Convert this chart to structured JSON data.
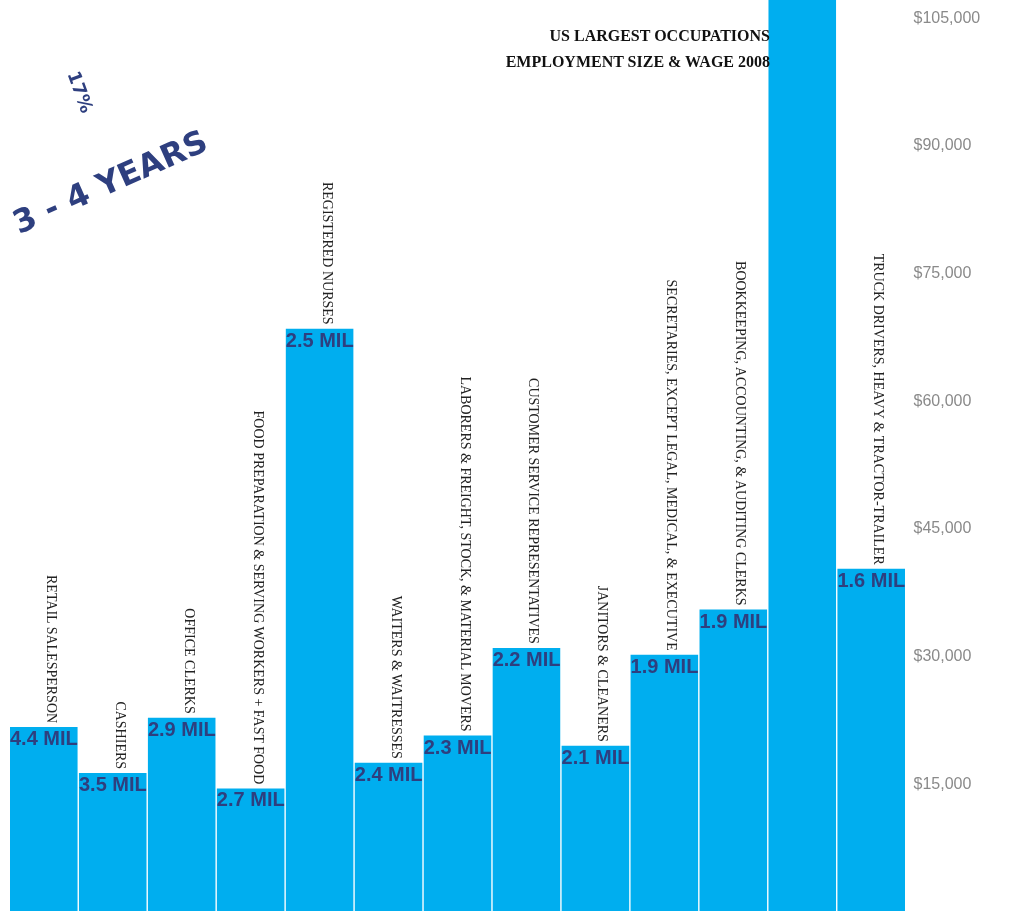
{
  "chart_data": {
    "type": "bar",
    "title": "US LARGEST OCCUPATIONS",
    "subtitle": "EMPLOYMENT SIZE  & WAGE 2008",
    "categories": [
      "RETAIL SALESPERSON",
      "CASHIERS",
      "OFFICE CLERKS",
      "FOOD PREPARATION & SERVING WORKERS + FAST FOOD",
      "REGISTERED NURSES",
      "WAITERS & WAITRESSES",
      "LABORERS & FREIGHT, STOCK, & MATERIAL MOVERS",
      "CUSTOMER SERVICE REPRESENTATIVES",
      "JANITORS & CLEANERS",
      "SECRETARIES, EXCEPT LEGAL, MEDICAL, & EXECUTIVE",
      "BOOKKEEPING, ACCOUNTING, & AUDITING CLERKS",
      null,
      "TRUCK DRIVERS, HEAVY & TRACTOR-TRAILER"
    ],
    "values": [
      21600,
      16200,
      22700,
      14400,
      68400,
      17400,
      20600,
      30900,
      19400,
      30100,
      35400,
      107000,
      40200
    ],
    "color": "#00aeef",
    "ylim": [
      0,
      107000
    ],
    "yticks": [
      {
        "value": 15000,
        "label": "$15,000"
      },
      {
        "value": 30000,
        "label": "$30,000"
      },
      {
        "value": 45000,
        "label": "$45,000"
      },
      {
        "value": 60000,
        "label": "$60,000"
      },
      {
        "value": 75000,
        "label": "$75,000"
      },
      {
        "value": 90000,
        "label": "$90,000"
      },
      {
        "value": 105000,
        "label": "$105,000"
      }
    ],
    "annotations": [
      "17%",
      "3 - 4 YEARS",
      {
        "text": "4.4 MIL",
        "x": "RETAIL SALESPERSON",
        "y": 21600
      },
      {
        "text": "3.5 MIL",
        "x": "CASHIERS",
        "y": 16200
      },
      {
        "text": "2.9 MIL",
        "x": "OFFICE CLERKS",
        "y": 22700
      },
      {
        "text": "2.7 MIL",
        "x": "FOOD PREPARATION & SERVING WORKERS + FAST FOOD",
        "y": 14400
      },
      {
        "text": "2.5 MIL",
        "x": "REGISTERED NURSES",
        "y": 68400
      },
      {
        "text": "2.4 MIL",
        "x": "WAITERS & WAITRESSES",
        "y": 17400
      },
      {
        "text": "2.3 MIL",
        "x": "LABORERS & FREIGHT, STOCK, & MATERIAL MOVERS",
        "y": 20600
      },
      {
        "text": "2.2 MIL",
        "x": "CUSTOMER SERVICE REPRESENTATIVES",
        "y": 30900
      },
      {
        "text": "2.1 MIL",
        "x": "JANITORS & CLEANERS",
        "y": 19400
      },
      {
        "text": "1.9 MIL",
        "x": "SECRETARIES, EXCEPT LEGAL, MEDICAL, & EXECUTIVE",
        "y": 30100
      },
      {
        "text": "1.9 MIL",
        "x": "BOOKKEEPING, ACCOUNTING, & AUDITING CLERKS",
        "y": 35400
      },
      {
        "text": "1.6 MIL",
        "x": "TRUCK DRIVERS, HEAVY & TRACTOR-TRAILER",
        "y": 40200
      }
    ]
  }
}
